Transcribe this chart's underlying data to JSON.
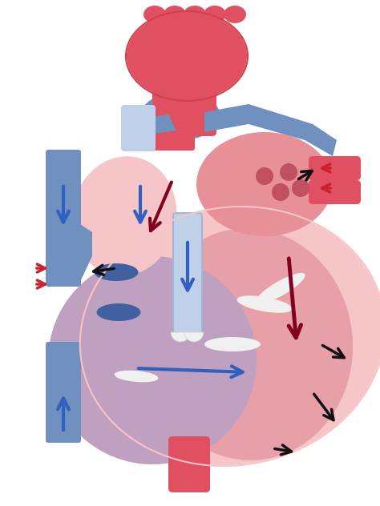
{
  "bg_color": "#ffffff",
  "heart_pink": "#f2a0a8",
  "heart_light_pink": "#f5c5c8",
  "heart_red": "#e05060",
  "heart_dark_red": "#8b1a1a",
  "heart_blue": "#7090c0",
  "heart_light_blue": "#a0b8d8",
  "heart_pale_blue": "#c0d0e8",
  "heart_purple": "#c090b0",
  "heart_light_purple": "#d8b0c0",
  "arrow_blue": "#3060c0",
  "arrow_dark_red": "#800020",
  "arrow_black": "#111111",
  "arrow_red": "#cc2030",
  "valve_white": "#f0f0f0",
  "vessel_blue_dark": "#6080b0"
}
